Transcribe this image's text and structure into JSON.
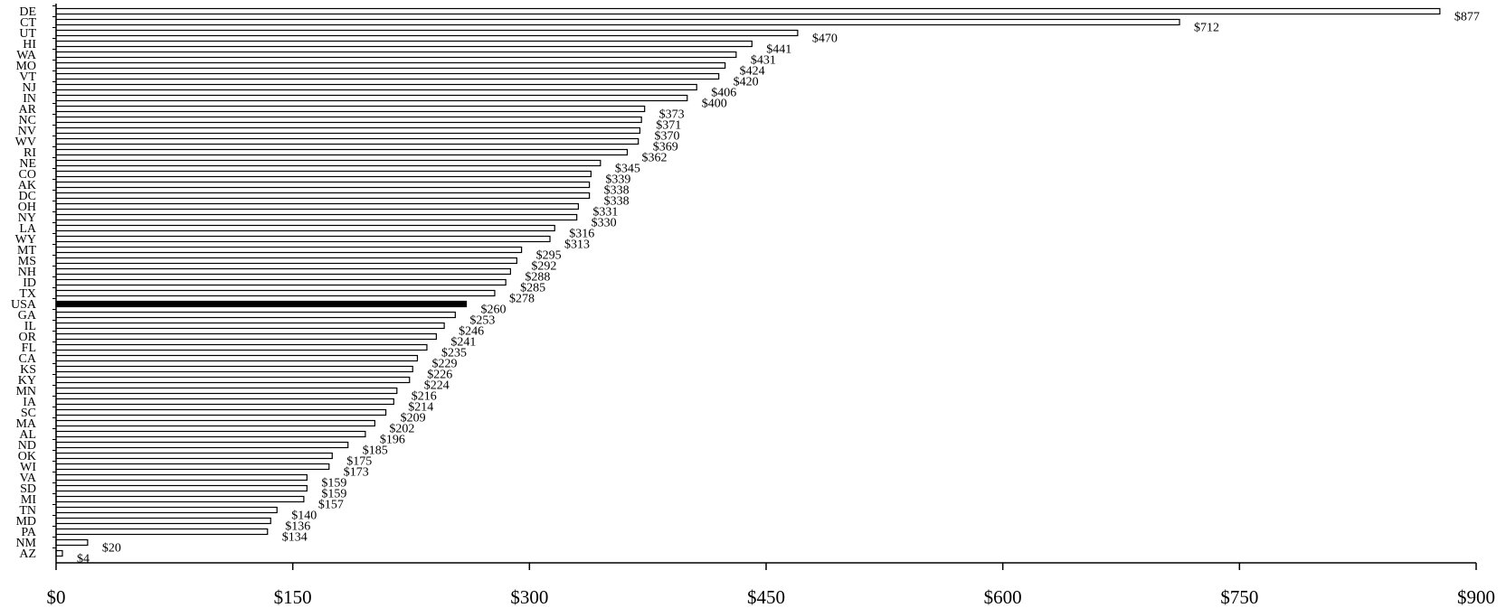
{
  "chart_data": {
    "type": "bar",
    "orientation": "horizontal",
    "title": "",
    "xlabel": "",
    "ylabel": "",
    "xlim": [
      0,
      900
    ],
    "x_ticks": [
      "$0",
      "$150",
      "$300",
      "$450",
      "$600",
      "$750",
      "$900"
    ],
    "x_tick_values": [
      0,
      150,
      300,
      450,
      600,
      750,
      900
    ],
    "value_prefix": "$",
    "grid": false,
    "highlight_category": "USA",
    "bar_fill": "#ffffff",
    "bar_stroke": "#000000",
    "highlight_fill": "#000000",
    "categories": [
      "DE",
      "CT",
      "UT",
      "HI",
      "WA",
      "MO",
      "VT",
      "NJ",
      "IN",
      "AR",
      "NC",
      "NV",
      "WV",
      "RI",
      "NE",
      "CO",
      "AK",
      "DC",
      "OH",
      "NY",
      "LA",
      "WY",
      "MT",
      "MS",
      "NH",
      "ID",
      "TX",
      "USA",
      "GA",
      "IL",
      "OR",
      "FL",
      "CA",
      "KS",
      "KY",
      "MN",
      "IA",
      "SC",
      "MA",
      "AL",
      "ND",
      "OK",
      "WI",
      "VA",
      "SD",
      "MI",
      "TN",
      "MD",
      "PA",
      "NM",
      "AZ"
    ],
    "values": [
      877,
      712,
      470,
      441,
      431,
      424,
      420,
      406,
      400,
      373,
      371,
      370,
      369,
      362,
      345,
      339,
      338,
      338,
      331,
      330,
      316,
      313,
      295,
      292,
      288,
      285,
      278,
      260,
      253,
      246,
      241,
      235,
      229,
      226,
      224,
      216,
      214,
      209,
      202,
      196,
      185,
      175,
      173,
      159,
      159,
      157,
      140,
      136,
      134,
      20,
      4
    ],
    "value_labels": [
      "$877",
      "$712",
      "$470",
      "$441",
      "$431",
      "$424",
      "$420",
      "$406",
      "$400",
      "$373",
      "$371",
      "$370",
      "$369",
      "$362",
      "$345",
      "$339",
      "$338",
      "$338",
      "$331",
      "$330",
      "$316",
      "$313",
      "$295",
      "$292",
      "$288",
      "$285",
      "$278",
      "$260",
      "$253",
      "$246",
      "$241",
      "$235",
      "$229",
      "$226",
      "$224",
      "$216",
      "$214",
      "$209",
      "$202",
      "$196",
      "$185",
      "$175",
      "$173",
      "$159",
      "$159",
      "$157",
      "$140",
      "$136",
      "$134",
      "$20",
      "$4"
    ]
  }
}
